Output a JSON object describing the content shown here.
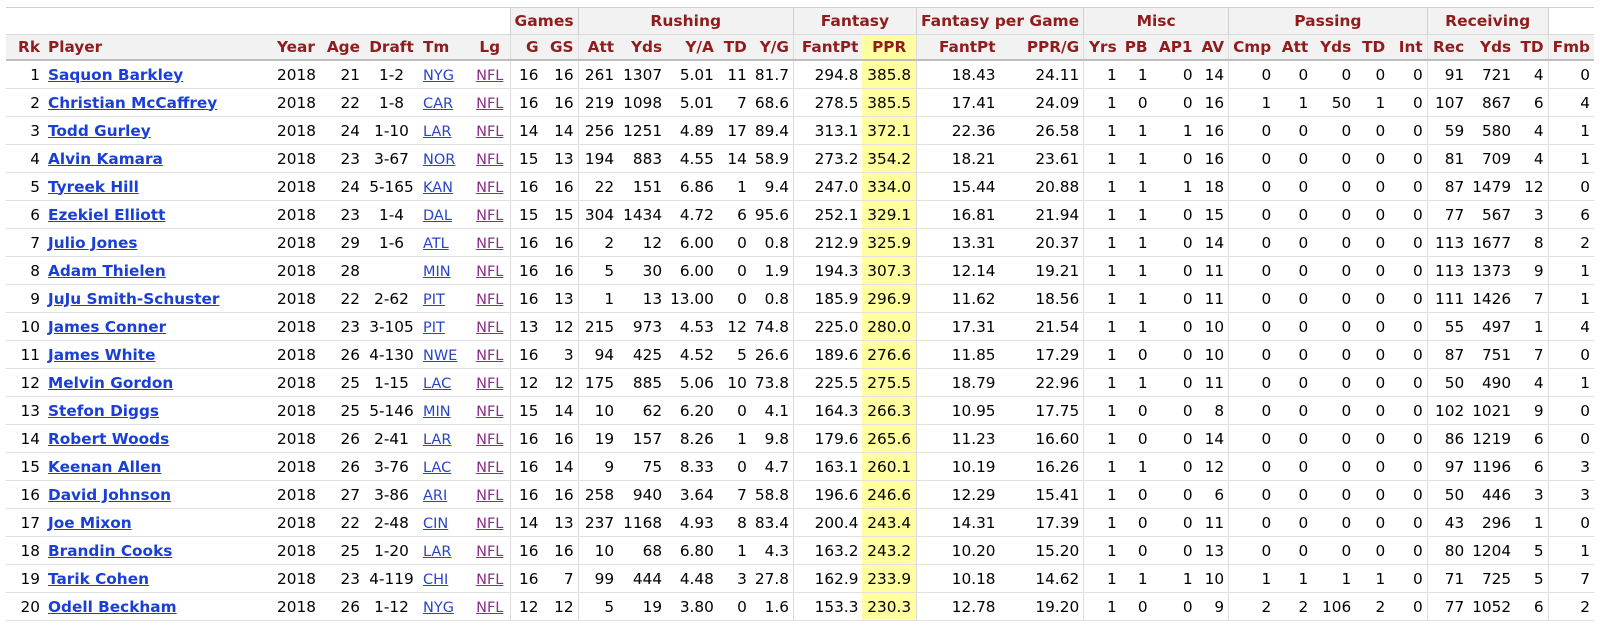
{
  "over_headers": [
    {
      "label": "",
      "span": 7,
      "name": "over-blank"
    },
    {
      "label": "Games",
      "span": 2,
      "name": "over-games"
    },
    {
      "label": "Rushing",
      "span": 5,
      "name": "over-rushing"
    },
    {
      "label": "Fantasy",
      "span": 2,
      "name": "over-fantasy"
    },
    {
      "label": "Fantasy per Game",
      "span": 2,
      "name": "over-fantasy-per-game"
    },
    {
      "label": "Misc",
      "span": 4,
      "name": "over-misc"
    },
    {
      "label": "Passing",
      "span": 5,
      "name": "over-passing"
    },
    {
      "label": "Receiving",
      "span": 3,
      "name": "over-receiving"
    },
    {
      "label": "",
      "span": 1,
      "name": "over-blank-end"
    }
  ],
  "columns": [
    {
      "label": "Rk",
      "align": "right"
    },
    {
      "label": "Player",
      "align": "left"
    },
    {
      "label": "Year",
      "align": "left"
    },
    {
      "label": "Age",
      "align": "right"
    },
    {
      "label": "Draft",
      "align": "center"
    },
    {
      "label": "Tm",
      "align": "left"
    },
    {
      "label": "Lg",
      "align": "center"
    },
    {
      "label": "G",
      "align": "right"
    },
    {
      "label": "GS",
      "align": "right"
    },
    {
      "label": "Att",
      "align": "right"
    },
    {
      "label": "Yds",
      "align": "right"
    },
    {
      "label": "Y/A",
      "align": "right"
    },
    {
      "label": "TD",
      "align": "right"
    },
    {
      "label": "Y/G",
      "align": "right"
    },
    {
      "label": "FantPt",
      "align": "right"
    },
    {
      "label": "PPR",
      "align": "center"
    },
    {
      "label": "FantPt",
      "align": "right"
    },
    {
      "label": "PPR/G",
      "align": "right"
    },
    {
      "label": "Yrs",
      "align": "right"
    },
    {
      "label": "PB",
      "align": "right"
    },
    {
      "label": "AP1",
      "align": "right"
    },
    {
      "label": "AV",
      "align": "right"
    },
    {
      "label": "Cmp",
      "align": "right"
    },
    {
      "label": "Att",
      "align": "right"
    },
    {
      "label": "Yds",
      "align": "right"
    },
    {
      "label": "TD",
      "align": "right"
    },
    {
      "label": "Int",
      "align": "right"
    },
    {
      "label": "Rec",
      "align": "right"
    },
    {
      "label": "Yds",
      "align": "right"
    },
    {
      "label": "TD",
      "align": "right"
    },
    {
      "label": "Fmb",
      "align": "right"
    }
  ],
  "rows": [
    [
      "1",
      "Saquon Barkley",
      "2018",
      "21",
      "1-2",
      "NYG",
      "NFL",
      "16",
      "16",
      "261",
      "1307",
      "5.01",
      "11",
      "81.7",
      "294.8",
      "385.8",
      "18.43",
      "24.11",
      "1",
      "1",
      "0",
      "14",
      "0",
      "0",
      "0",
      "0",
      "0",
      "91",
      "721",
      "4",
      "0"
    ],
    [
      "2",
      "Christian McCaffrey",
      "2018",
      "22",
      "1-8",
      "CAR",
      "NFL",
      "16",
      "16",
      "219",
      "1098",
      "5.01",
      "7",
      "68.6",
      "278.5",
      "385.5",
      "17.41",
      "24.09",
      "1",
      "0",
      "0",
      "16",
      "1",
      "1",
      "50",
      "1",
      "0",
      "107",
      "867",
      "6",
      "4"
    ],
    [
      "3",
      "Todd Gurley",
      "2018",
      "24",
      "1-10",
      "LAR",
      "NFL",
      "14",
      "14",
      "256",
      "1251",
      "4.89",
      "17",
      "89.4",
      "313.1",
      "372.1",
      "22.36",
      "26.58",
      "1",
      "1",
      "1",
      "16",
      "0",
      "0",
      "0",
      "0",
      "0",
      "59",
      "580",
      "4",
      "1"
    ],
    [
      "4",
      "Alvin Kamara",
      "2018",
      "23",
      "3-67",
      "NOR",
      "NFL",
      "15",
      "13",
      "194",
      "883",
      "4.55",
      "14",
      "58.9",
      "273.2",
      "354.2",
      "18.21",
      "23.61",
      "1",
      "1",
      "0",
      "16",
      "0",
      "0",
      "0",
      "0",
      "0",
      "81",
      "709",
      "4",
      "1"
    ],
    [
      "5",
      "Tyreek Hill",
      "2018",
      "24",
      "5-165",
      "KAN",
      "NFL",
      "16",
      "16",
      "22",
      "151",
      "6.86",
      "1",
      "9.4",
      "247.0",
      "334.0",
      "15.44",
      "20.88",
      "1",
      "1",
      "1",
      "18",
      "0",
      "0",
      "0",
      "0",
      "0",
      "87",
      "1479",
      "12",
      "0"
    ],
    [
      "6",
      "Ezekiel Elliott",
      "2018",
      "23",
      "1-4",
      "DAL",
      "NFL",
      "15",
      "15",
      "304",
      "1434",
      "4.72",
      "6",
      "95.6",
      "252.1",
      "329.1",
      "16.81",
      "21.94",
      "1",
      "1",
      "0",
      "15",
      "0",
      "0",
      "0",
      "0",
      "0",
      "77",
      "567",
      "3",
      "6"
    ],
    [
      "7",
      "Julio Jones",
      "2018",
      "29",
      "1-6",
      "ATL",
      "NFL",
      "16",
      "16",
      "2",
      "12",
      "6.00",
      "0",
      "0.8",
      "212.9",
      "325.9",
      "13.31",
      "20.37",
      "1",
      "1",
      "0",
      "14",
      "0",
      "0",
      "0",
      "0",
      "0",
      "113",
      "1677",
      "8",
      "2"
    ],
    [
      "8",
      "Adam Thielen",
      "2018",
      "28",
      "",
      "MIN",
      "NFL",
      "16",
      "16",
      "5",
      "30",
      "6.00",
      "0",
      "1.9",
      "194.3",
      "307.3",
      "12.14",
      "19.21",
      "1",
      "1",
      "0",
      "11",
      "0",
      "0",
      "0",
      "0",
      "0",
      "113",
      "1373",
      "9",
      "1"
    ],
    [
      "9",
      "JuJu Smith-Schuster",
      "2018",
      "22",
      "2-62",
      "PIT",
      "NFL",
      "16",
      "13",
      "1",
      "13",
      "13.00",
      "0",
      "0.8",
      "185.9",
      "296.9",
      "11.62",
      "18.56",
      "1",
      "1",
      "0",
      "11",
      "0",
      "0",
      "0",
      "0",
      "0",
      "111",
      "1426",
      "7",
      "1"
    ],
    [
      "10",
      "James Conner",
      "2018",
      "23",
      "3-105",
      "PIT",
      "NFL",
      "13",
      "12",
      "215",
      "973",
      "4.53",
      "12",
      "74.8",
      "225.0",
      "280.0",
      "17.31",
      "21.54",
      "1",
      "1",
      "0",
      "10",
      "0",
      "0",
      "0",
      "0",
      "0",
      "55",
      "497",
      "1",
      "4"
    ],
    [
      "11",
      "James White",
      "2018",
      "26",
      "4-130",
      "NWE",
      "NFL",
      "16",
      "3",
      "94",
      "425",
      "4.52",
      "5",
      "26.6",
      "189.6",
      "276.6",
      "11.85",
      "17.29",
      "1",
      "0",
      "0",
      "10",
      "0",
      "0",
      "0",
      "0",
      "0",
      "87",
      "751",
      "7",
      "0"
    ],
    [
      "12",
      "Melvin Gordon",
      "2018",
      "25",
      "1-15",
      "LAC",
      "NFL",
      "12",
      "12",
      "175",
      "885",
      "5.06",
      "10",
      "73.8",
      "225.5",
      "275.5",
      "18.79",
      "22.96",
      "1",
      "1",
      "0",
      "11",
      "0",
      "0",
      "0",
      "0",
      "0",
      "50",
      "490",
      "4",
      "1"
    ],
    [
      "13",
      "Stefon Diggs",
      "2018",
      "25",
      "5-146",
      "MIN",
      "NFL",
      "15",
      "14",
      "10",
      "62",
      "6.20",
      "0",
      "4.1",
      "164.3",
      "266.3",
      "10.95",
      "17.75",
      "1",
      "0",
      "0",
      "8",
      "0",
      "0",
      "0",
      "0",
      "0",
      "102",
      "1021",
      "9",
      "0"
    ],
    [
      "14",
      "Robert Woods",
      "2018",
      "26",
      "2-41",
      "LAR",
      "NFL",
      "16",
      "16",
      "19",
      "157",
      "8.26",
      "1",
      "9.8",
      "179.6",
      "265.6",
      "11.23",
      "16.60",
      "1",
      "0",
      "0",
      "14",
      "0",
      "0",
      "0",
      "0",
      "0",
      "86",
      "1219",
      "6",
      "0"
    ],
    [
      "15",
      "Keenan Allen",
      "2018",
      "26",
      "3-76",
      "LAC",
      "NFL",
      "16",
      "14",
      "9",
      "75",
      "8.33",
      "0",
      "4.7",
      "163.1",
      "260.1",
      "10.19",
      "16.26",
      "1",
      "1",
      "0",
      "12",
      "0",
      "0",
      "0",
      "0",
      "0",
      "97",
      "1196",
      "6",
      "3"
    ],
    [
      "16",
      "David Johnson",
      "2018",
      "27",
      "3-86",
      "ARI",
      "NFL",
      "16",
      "16",
      "258",
      "940",
      "3.64",
      "7",
      "58.8",
      "196.6",
      "246.6",
      "12.29",
      "15.41",
      "1",
      "0",
      "0",
      "6",
      "0",
      "0",
      "0",
      "0",
      "0",
      "50",
      "446",
      "3",
      "3"
    ],
    [
      "17",
      "Joe Mixon",
      "2018",
      "22",
      "2-48",
      "CIN",
      "NFL",
      "14",
      "13",
      "237",
      "1168",
      "4.93",
      "8",
      "83.4",
      "200.4",
      "243.4",
      "14.31",
      "17.39",
      "1",
      "0",
      "0",
      "11",
      "0",
      "0",
      "0",
      "0",
      "0",
      "43",
      "296",
      "1",
      "0"
    ],
    [
      "18",
      "Brandin Cooks",
      "2018",
      "25",
      "1-20",
      "LAR",
      "NFL",
      "16",
      "16",
      "10",
      "68",
      "6.80",
      "1",
      "4.3",
      "163.2",
      "243.2",
      "10.20",
      "15.20",
      "1",
      "0",
      "0",
      "13",
      "0",
      "0",
      "0",
      "0",
      "0",
      "80",
      "1204",
      "5",
      "1"
    ],
    [
      "19",
      "Tarik Cohen",
      "2018",
      "23",
      "4-119",
      "CHI",
      "NFL",
      "16",
      "7",
      "99",
      "444",
      "4.48",
      "3",
      "27.8",
      "162.9",
      "233.9",
      "10.18",
      "14.62",
      "1",
      "1",
      "1",
      "10",
      "1",
      "1",
      "1",
      "1",
      "0",
      "71",
      "725",
      "5",
      "7"
    ],
    [
      "20",
      "Odell Beckham",
      "2018",
      "26",
      "1-12",
      "NYG",
      "NFL",
      "12",
      "12",
      "5",
      "19",
      "3.80",
      "0",
      "1.6",
      "153.3",
      "230.3",
      "12.78",
      "19.20",
      "1",
      "0",
      "0",
      "9",
      "2",
      "2",
      "106",
      "2",
      "0",
      "77",
      "1052",
      "6",
      "2"
    ]
  ],
  "colors": {
    "header_text": "#8f1d1d",
    "header_bg": "#f2f2f2",
    "ppr_highlight": "#ffff9f",
    "player_link": "#1a3fd6",
    "team_link": "#2a44c8",
    "league_link": "#8a2e8a"
  }
}
